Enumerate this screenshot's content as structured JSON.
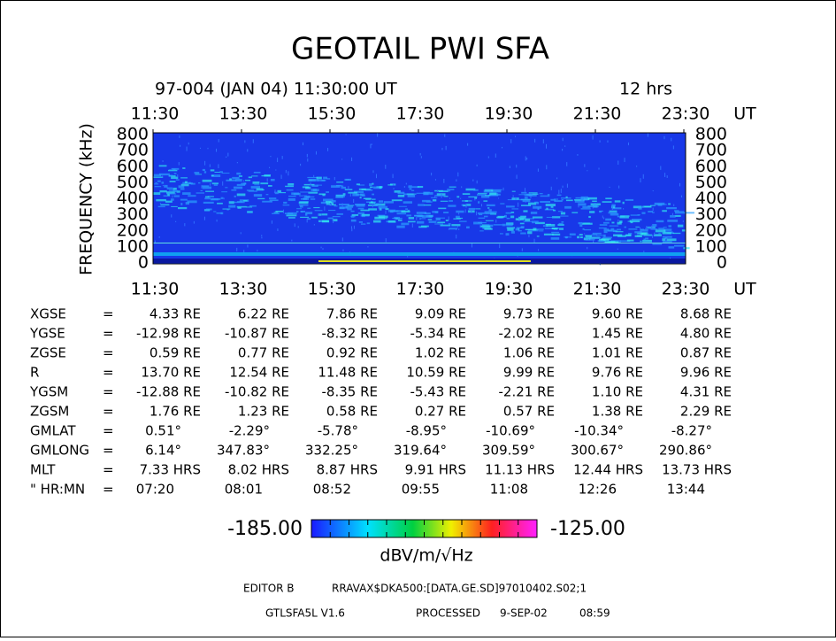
{
  "header": {
    "title": "GEOTAIL PWI SFA",
    "subtitle": "97-004 (JAN 04) 11:30:00 UT",
    "duration": "12 hrs"
  },
  "time_axis": {
    "labels": [
      "11:30",
      "13:30",
      "15:30",
      "17:30",
      "19:30",
      "21:30",
      "23:30"
    ],
    "unit": "UT"
  },
  "frequency_axis": {
    "label": "FREQUENCY (kHz)",
    "ticks": [
      "0",
      "100",
      "200",
      "300",
      "400",
      "500",
      "600",
      "700",
      "800"
    ]
  },
  "table": {
    "separator": "=",
    "rows": [
      {
        "label": "XGSE",
        "values": [
          "4.33 RE",
          "6.22 RE",
          "7.86 RE",
          "9.09 RE",
          "9.73 RE",
          "9.60 RE",
          "8.68 RE"
        ]
      },
      {
        "label": "YGSE",
        "values": [
          "-12.98 RE",
          "-10.87 RE",
          "-8.32 RE",
          "-5.34 RE",
          "-2.02 RE",
          "1.45 RE",
          "4.80 RE"
        ]
      },
      {
        "label": "ZGSE",
        "values": [
          "0.59 RE",
          "0.77 RE",
          "0.92 RE",
          "1.02 RE",
          "1.06 RE",
          "1.01 RE",
          "0.87 RE"
        ]
      },
      {
        "label": "R",
        "values": [
          "13.70 RE",
          "12.54 RE",
          "11.48 RE",
          "10.59 RE",
          "9.99 RE",
          "9.76 RE",
          "9.96 RE"
        ]
      },
      {
        "label": "YGSM",
        "values": [
          "-12.88 RE",
          "-10.82 RE",
          "-8.35 RE",
          "-5.43 RE",
          "-2.21 RE",
          "1.10 RE",
          "4.31 RE"
        ]
      },
      {
        "label": "ZGSM",
        "values": [
          "1.76 RE",
          "1.23 RE",
          "0.58 RE",
          "0.27 RE",
          "0.57 RE",
          "1.38 RE",
          "2.29 RE"
        ]
      },
      {
        "label": "GMLAT",
        "values": [
          "0.51°",
          "-2.29°",
          "-5.78°",
          "-8.95°",
          "-10.69°",
          "-10.34°",
          "-8.27°"
        ]
      },
      {
        "label": "GMLONG",
        "values": [
          "6.14°",
          "347.83°",
          "332.25°",
          "319.64°",
          "309.59°",
          "300.67°",
          "290.86°"
        ]
      },
      {
        "label": "MLT",
        "values": [
          "7.33 HRS",
          "8.02 HRS",
          "8.87 HRS",
          "9.91 HRS",
          "11.13 HRS",
          "12.44 HRS",
          "13.73 HRS"
        ]
      },
      {
        "label": "\" HR:MN",
        "values": [
          "07:20",
          "08:01",
          "08:52",
          "09:55",
          "11:08",
          "12:26",
          "13:44"
        ]
      }
    ]
  },
  "colorbar": {
    "min_label": "-185.00",
    "max_label": "-125.00",
    "unit": "dBV/m/√Hz"
  },
  "footer": {
    "editor": "EDITOR B",
    "file": "RRAVAX$DKA500:[DATA.GE.SD]97010402.S02;1",
    "program": "GTLSFA5L V1.6",
    "processed": "PROCESSED",
    "date": "9-SEP-02",
    "time": "08:59"
  }
}
